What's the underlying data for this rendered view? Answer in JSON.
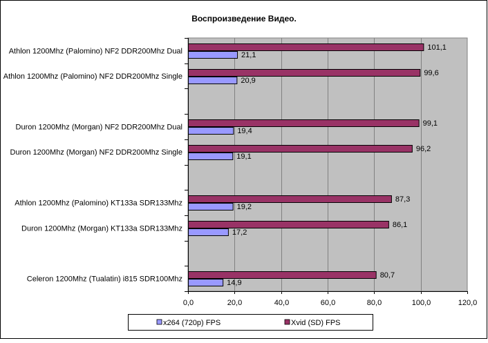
{
  "chart_data": {
    "type": "bar",
    "orientation": "horizontal",
    "title": "Воспроизведение Видео.",
    "categories": [
      "Athlon 1200Mhz (Palomino) NF2 DDR200Mhz Dual",
      "Athlon 1200Mhz (Palomino) NF2 DDR200Mhz Single",
      "",
      "Duron 1200Mhz (Morgan) NF2 DDR200Mhz Dual",
      "Duron 1200Mhz (Morgan) NF2 DDR200Mhz Single",
      "",
      "Athlon 1200Mhz (Palomino) KT133a SDR133Mhz",
      "Duron 1200Mhz (Morgan) KT133a SDR133Mhz",
      "",
      "Celeron 1200Mhz (Tualatin) i815 SDR100Mhz"
    ],
    "series": [
      {
        "name": "x264 (720p) FPS",
        "color": "#9999FF",
        "values": [
          21.1,
          20.9,
          null,
          19.4,
          19.1,
          null,
          19.2,
          17.2,
          null,
          14.9
        ],
        "labels": [
          "21,1",
          "20,9",
          "",
          "19,4",
          "19,1",
          "",
          "19,2",
          "17,2",
          "",
          "14,9"
        ]
      },
      {
        "name": "Xvid (SD) FPS",
        "color": "#993366",
        "values": [
          101.1,
          99.6,
          null,
          99.1,
          96.2,
          null,
          87.3,
          86.1,
          null,
          80.7
        ],
        "labels": [
          "101,1",
          "99,6",
          "",
          "99,1",
          "96,2",
          "",
          "87,3",
          "86,1",
          "",
          "80,7"
        ]
      }
    ],
    "xlim": [
      0,
      120
    ],
    "xticks": [
      0,
      20,
      40,
      60,
      80,
      100,
      120
    ],
    "xtick_labels": [
      "0,0",
      "20,0",
      "40,0",
      "60,0",
      "80,0",
      "100,0",
      "120,0"
    ],
    "grid": true,
    "plot_background": "#C0C0C0",
    "legend_position": "bottom"
  }
}
